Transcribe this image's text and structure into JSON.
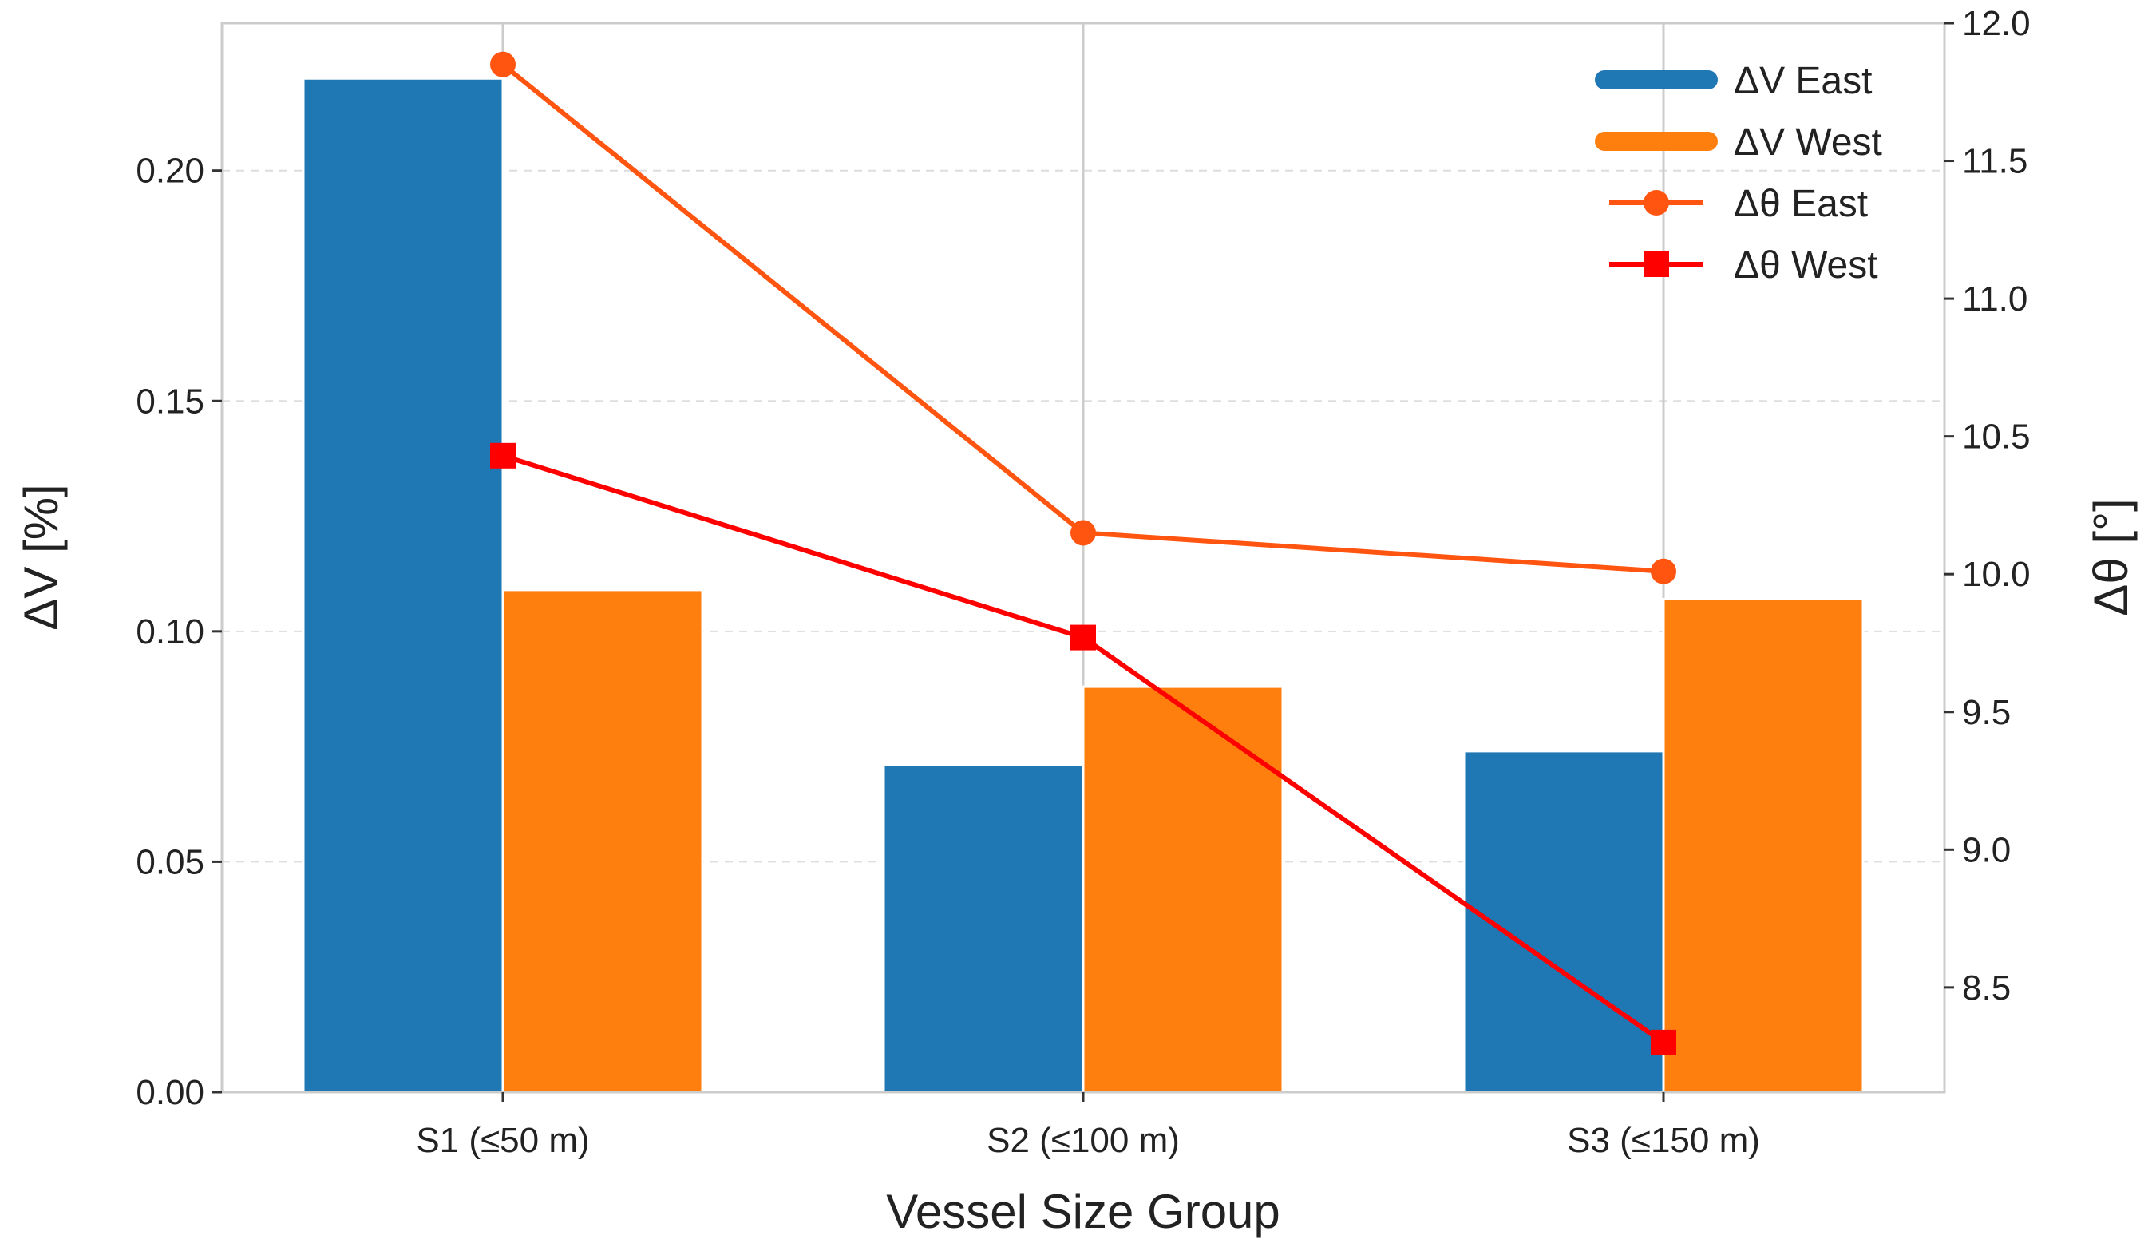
{
  "chart_data": {
    "type": "bar",
    "title": "",
    "xlabel": "Vessel Size Group",
    "ylabel_left": "ΔV [%]",
    "ylabel_right": "Δθ [°]",
    "categories": [
      "S1 (≤50 m)",
      "S2 (≤100 m)",
      "S3 (≤150 m)"
    ],
    "ylim_left": [
      0,
      0.232
    ],
    "ylim_right": [
      8.12,
      12.0
    ],
    "left_ticks": [
      0.0,
      0.05,
      0.1,
      0.15,
      0.2
    ],
    "left_tick_labels": [
      "0.00",
      "0.05",
      "0.10",
      "0.15",
      "0.20"
    ],
    "right_ticks": [
      8.5,
      9.0,
      9.5,
      10.0,
      10.5,
      11.0,
      11.5,
      12.0
    ],
    "right_tick_labels": [
      "8.5",
      "9.0",
      "9.5",
      "10.0",
      "10.5",
      "11.0",
      "11.5",
      "12.0"
    ],
    "grid": true,
    "legend_position": "top-right",
    "bar_series": [
      {
        "name": "ΔV East",
        "axis": "left",
        "color": "#1f77b4",
        "values": [
          0.22,
          0.071,
          0.074
        ]
      },
      {
        "name": "ΔV West",
        "axis": "left",
        "color": "#ff7f0e",
        "values": [
          0.109,
          0.088,
          0.107
        ]
      }
    ],
    "line_series": [
      {
        "name": "Δθ East",
        "axis": "right",
        "color": "#ff5511",
        "marker": "circle",
        "values": [
          11.85,
          10.15,
          10.01
        ]
      },
      {
        "name": "Δθ West",
        "axis": "right",
        "color": "#ff0000",
        "marker": "square",
        "values": [
          10.43,
          9.77,
          8.3
        ]
      }
    ]
  }
}
